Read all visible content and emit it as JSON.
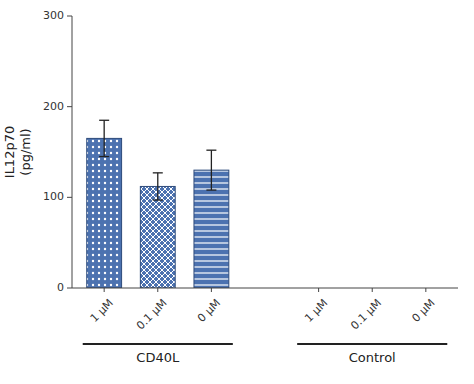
{
  "chart_data": {
    "type": "bar",
    "ylabel": "IL12p70\n(pg/ml)",
    "categories": [
      "1 μM",
      "0.1 μM",
      "0 μM",
      "1 μM",
      "0.1 μM",
      "0 μM"
    ],
    "values": [
      165,
      112,
      130,
      0,
      0,
      0
    ],
    "errors": [
      20,
      15,
      22,
      0,
      0,
      0
    ],
    "group_labels": [
      "CD40L",
      "Control"
    ],
    "ylim": [
      0,
      300
    ],
    "yticks": [
      0,
      100,
      200,
      300
    ],
    "grid": false
  }
}
